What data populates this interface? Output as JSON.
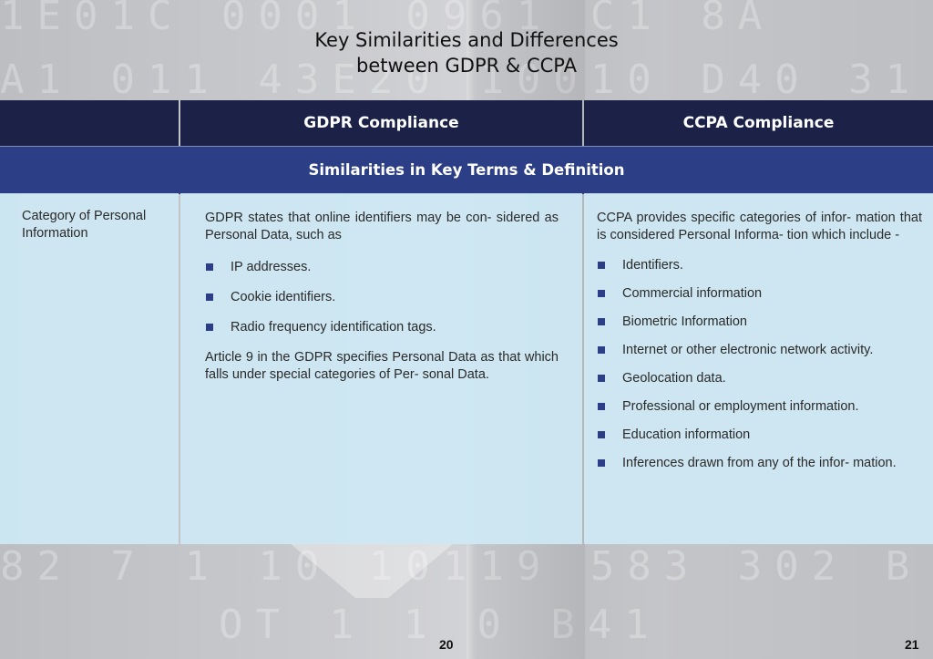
{
  "page": {
    "title_line1": "Key Similarities and Differences",
    "title_line2": "between GDPR & CCPA",
    "page_left": "20",
    "page_right": "21"
  },
  "background": {
    "digits": [
      "1E01C 0001 0961 C1 8A",
      "A1 011 43E20 10010 D40 31 1",
      "82 7 1 10 10119 583 302 B",
      "OT 1 1 0 B41"
    ]
  },
  "table": {
    "headers": [
      "",
      "GDPR Compliance",
      "CCPA Compliance"
    ],
    "section_title": "Similarities in Key Terms & Definition",
    "row": {
      "category": "Category of Personal Information",
      "gdpr": {
        "intro": "GDPR states that online identifiers may be con- sidered as Personal Data, such as",
        "items": [
          "IP addresses.",
          "Cookie identifiers.",
          "Radio frequency identification tags."
        ],
        "outro": "Article 9 in the GDPR  specifies Personal Data as that which falls under special categories of Per- sonal Data."
      },
      "ccpa": {
        "intro": "CCPA provides specific categories of infor- mation that is considered Personal Informa- tion which include -",
        "items": [
          "Identifiers.",
          "Commercial information",
          "Biometric Information",
          "Internet or other electronic network activity.",
          "Geolocation data.",
          "Professional or employment information.",
          "Education information",
          "Inferences drawn from any of the infor- mation."
        ]
      }
    }
  },
  "colors": {
    "header_bg": "#1b2147",
    "section_bg": "#2b3e86",
    "cell_bg": "#cde8f4",
    "bullet": "#2b3e86"
  }
}
